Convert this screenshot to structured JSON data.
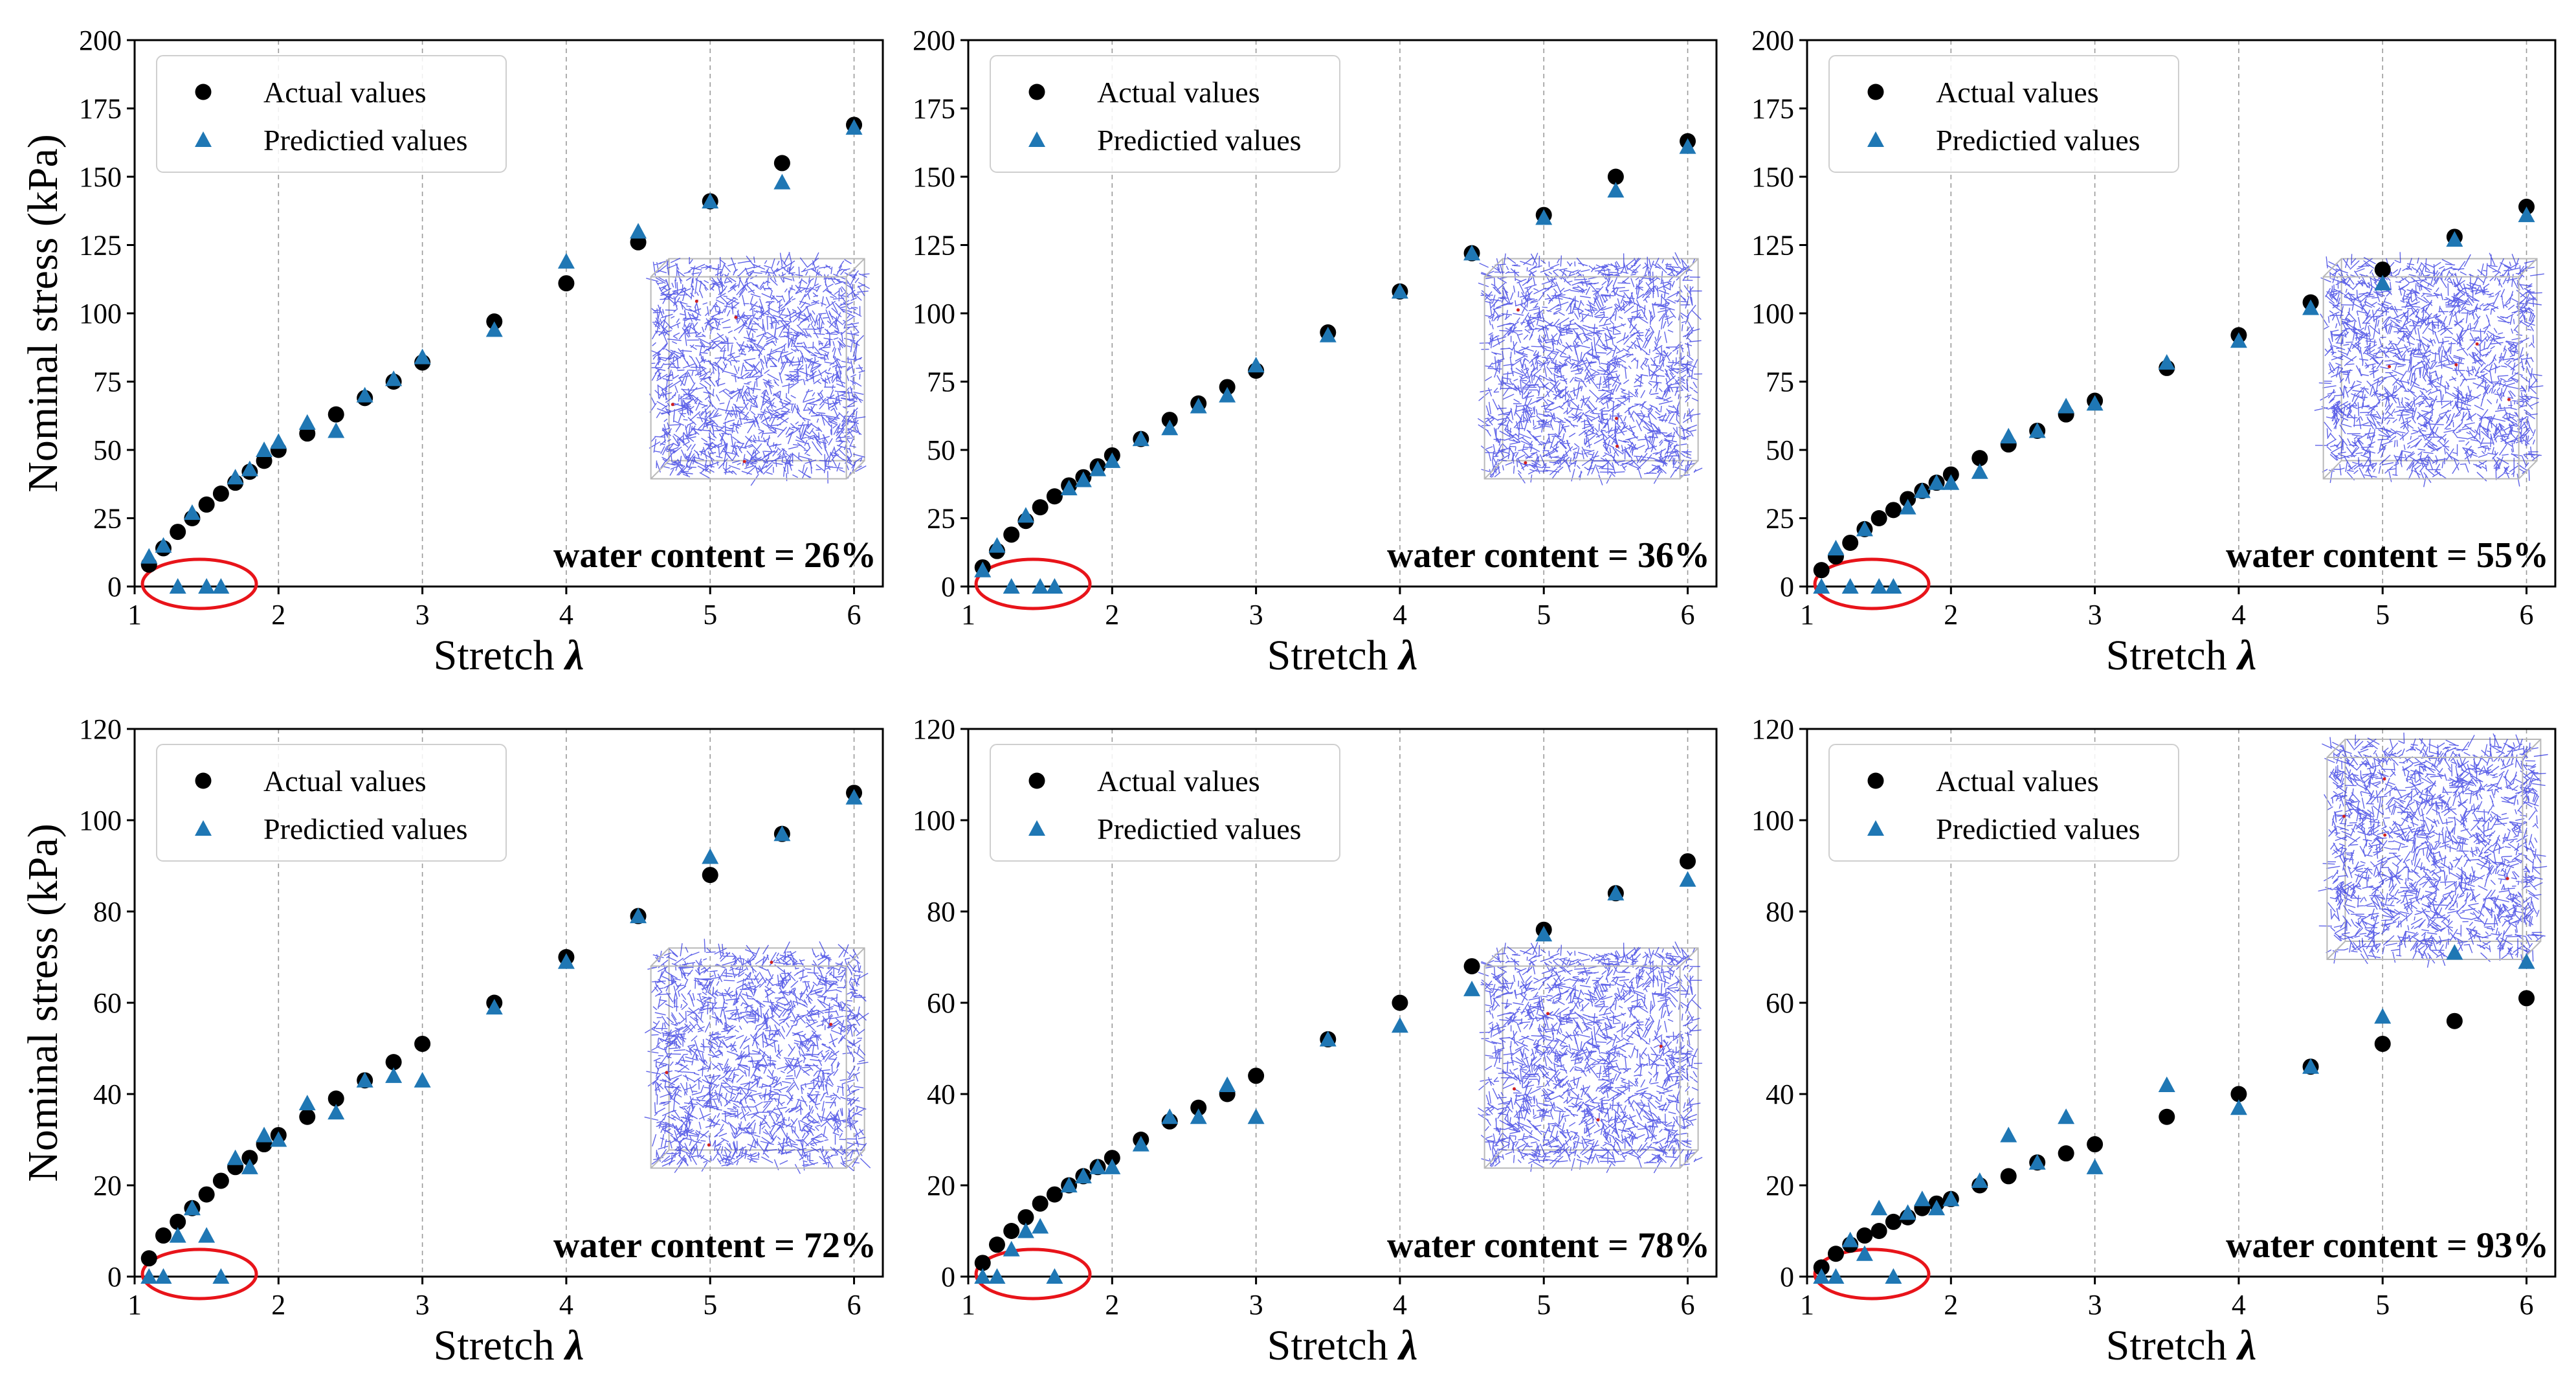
{
  "figure": {
    "colors": {
      "actual": "#000000",
      "predicted": "#1f77b4",
      "highlight": "#e8141a",
      "network": "#2a2fe0"
    },
    "legend": {
      "actual": "Actual values",
      "predicted": "Predictied values"
    }
  },
  "chart_data": [
    {
      "type": "scatter",
      "panel": "a",
      "annotation": "water content = 26%",
      "xlabel": "Stretch",
      "xlabel_symbol": "λ",
      "ylabel": "Nominal stress (kPa)",
      "xlim": [
        1,
        6.2
      ],
      "ylim": [
        0,
        200
      ],
      "xticks": [
        1,
        2,
        3,
        4,
        5,
        6
      ],
      "yticks": [
        0,
        25,
        50,
        75,
        100,
        125,
        150,
        175,
        200
      ],
      "legend_position": "top-left",
      "inset_position": "right-middle",
      "series": [
        {
          "name": "Actual values",
          "x": [
            1.1,
            1.2,
            1.3,
            1.4,
            1.5,
            1.6,
            1.7,
            1.8,
            1.9,
            2.0,
            2.2,
            2.4,
            2.6,
            2.8,
            3.0,
            3.5,
            4.0,
            4.5,
            5.0,
            5.5,
            6.0
          ],
          "y": [
            8,
            14,
            20,
            25,
            30,
            34,
            38,
            42,
            46,
            50,
            56,
            63,
            69,
            75,
            82,
            97,
            111,
            126,
            141,
            155,
            169
          ]
        },
        {
          "name": "Predictied values",
          "x": [
            1.1,
            1.2,
            1.3,
            1.4,
            1.5,
            1.6,
            1.7,
            1.8,
            1.9,
            2.0,
            2.2,
            2.4,
            2.6,
            2.8,
            3.0,
            3.5,
            4.0,
            4.5,
            5.0,
            5.5,
            6.0
          ],
          "y": [
            11,
            15,
            0,
            27,
            0,
            0,
            40,
            43,
            50,
            53,
            60,
            57,
            70,
            76,
            84,
            94,
            119,
            130,
            141,
            148,
            168
          ]
        }
      ]
    },
    {
      "type": "scatter",
      "panel": "b",
      "annotation": "water content = 36%",
      "xlabel": "Stretch",
      "xlabel_symbol": "λ",
      "ylabel": "",
      "xlim": [
        1,
        6.2
      ],
      "ylim": [
        0,
        200
      ],
      "xticks": [
        1,
        2,
        3,
        4,
        5,
        6
      ],
      "yticks": [
        0,
        25,
        50,
        75,
        100,
        125,
        150,
        175,
        200
      ],
      "legend_position": "top-left",
      "inset_position": "right-middle",
      "series": [
        {
          "name": "Actual values",
          "x": [
            1.1,
            1.2,
            1.3,
            1.4,
            1.5,
            1.6,
            1.7,
            1.8,
            1.9,
            2.0,
            2.2,
            2.4,
            2.6,
            2.8,
            3.0,
            3.5,
            4.0,
            4.5,
            5.0,
            5.5,
            6.0
          ],
          "y": [
            7,
            13,
            19,
            24,
            29,
            33,
            37,
            40,
            44,
            48,
            54,
            61,
            67,
            73,
            79,
            93,
            108,
            122,
            136,
            150,
            163
          ]
        },
        {
          "name": "Predictied values",
          "x": [
            1.1,
            1.2,
            1.3,
            1.4,
            1.5,
            1.6,
            1.7,
            1.8,
            1.9,
            2.0,
            2.2,
            2.4,
            2.6,
            2.8,
            3.0,
            3.5,
            4.0,
            4.5,
            5.0,
            5.5,
            6.0
          ],
          "y": [
            6,
            15,
            0,
            26,
            0,
            0,
            36,
            39,
            43,
            46,
            54,
            58,
            66,
            70,
            81,
            92,
            108,
            122,
            135,
            145,
            161
          ]
        }
      ]
    },
    {
      "type": "scatter",
      "panel": "c",
      "annotation": "water content = 55%",
      "xlabel": "Stretch",
      "xlabel_symbol": "λ",
      "ylabel": "",
      "xlim": [
        1,
        6.2
      ],
      "ylim": [
        0,
        200
      ],
      "xticks": [
        1,
        2,
        3,
        4,
        5,
        6
      ],
      "yticks": [
        0,
        25,
        50,
        75,
        100,
        125,
        150,
        175,
        200
      ],
      "legend_position": "top-left",
      "inset_position": "right-middle",
      "series": [
        {
          "name": "Actual values",
          "x": [
            1.1,
            1.2,
            1.3,
            1.4,
            1.5,
            1.6,
            1.7,
            1.8,
            1.9,
            2.0,
            2.2,
            2.4,
            2.6,
            2.8,
            3.0,
            3.5,
            4.0,
            4.5,
            5.0,
            5.5,
            6.0
          ],
          "y": [
            6,
            11,
            16,
            21,
            25,
            28,
            32,
            35,
            38,
            41,
            47,
            52,
            57,
            63,
            68,
            80,
            92,
            104,
            116,
            128,
            139
          ]
        },
        {
          "name": "Predictied values",
          "x": [
            1.1,
            1.2,
            1.3,
            1.4,
            1.5,
            1.6,
            1.7,
            1.8,
            1.9,
            2.0,
            2.2,
            2.4,
            2.6,
            2.8,
            3.0,
            3.5,
            4.0,
            4.5,
            5.0,
            5.5,
            6.0
          ],
          "y": [
            0,
            14,
            0,
            21,
            0,
            0,
            29,
            35,
            38,
            38,
            42,
            55,
            57,
            66,
            67,
            82,
            90,
            102,
            111,
            127,
            136
          ]
        }
      ]
    },
    {
      "type": "scatter",
      "panel": "d",
      "annotation": "water content = 72%",
      "xlabel": "Stretch",
      "xlabel_symbol": "λ",
      "ylabel": "Nominal stress (kPa)",
      "xlim": [
        1,
        6.2
      ],
      "ylim": [
        0,
        120
      ],
      "xticks": [
        1,
        2,
        3,
        4,
        5,
        6
      ],
      "yticks": [
        0,
        20,
        40,
        60,
        80,
        100,
        120
      ],
      "legend_position": "top-left",
      "inset_position": "right-middle",
      "series": [
        {
          "name": "Actual values",
          "x": [
            1.1,
            1.2,
            1.3,
            1.4,
            1.5,
            1.6,
            1.7,
            1.8,
            1.9,
            2.0,
            2.2,
            2.4,
            2.6,
            2.8,
            3.0,
            3.5,
            4.0,
            4.5,
            5.0,
            5.5,
            6.0
          ],
          "y": [
            4,
            9,
            12,
            15,
            18,
            21,
            24,
            26,
            29,
            31,
            35,
            39,
            43,
            47,
            51,
            60,
            70,
            79,
            88,
            97,
            106
          ]
        },
        {
          "name": "Predictied values",
          "x": [
            1.1,
            1.2,
            1.3,
            1.4,
            1.5,
            1.6,
            1.7,
            1.8,
            1.9,
            2.0,
            2.2,
            2.4,
            2.6,
            2.8,
            3.0,
            3.5,
            4.0,
            4.5,
            5.0,
            5.5,
            6.0
          ],
          "y": [
            0,
            0,
            9,
            15,
            9,
            0,
            26,
            24,
            31,
            30,
            38,
            36,
            43,
            44,
            43,
            59,
            69,
            79,
            92,
            97,
            105
          ]
        }
      ]
    },
    {
      "type": "scatter",
      "panel": "e",
      "annotation": "water content = 78%",
      "xlabel": "Stretch",
      "xlabel_symbol": "λ",
      "ylabel": "",
      "xlim": [
        1,
        6.2
      ],
      "ylim": [
        0,
        120
      ],
      "xticks": [
        1,
        2,
        3,
        4,
        5,
        6
      ],
      "yticks": [
        0,
        20,
        40,
        60,
        80,
        100,
        120
      ],
      "legend_position": "top-left",
      "inset_position": "right-middle",
      "series": [
        {
          "name": "Actual values",
          "x": [
            1.1,
            1.2,
            1.3,
            1.4,
            1.5,
            1.6,
            1.7,
            1.8,
            1.9,
            2.0,
            2.2,
            2.4,
            2.6,
            2.8,
            3.0,
            3.5,
            4.0,
            4.5,
            5.0,
            5.5,
            6.0
          ],
          "y": [
            3,
            7,
            10,
            13,
            16,
            18,
            20,
            22,
            24,
            26,
            30,
            34,
            37,
            40,
            44,
            52,
            60,
            68,
            76,
            84,
            91
          ]
        },
        {
          "name": "Predictied values",
          "x": [
            1.1,
            1.2,
            1.3,
            1.4,
            1.5,
            1.6,
            1.7,
            1.8,
            1.9,
            2.0,
            2.2,
            2.4,
            2.6,
            2.8,
            3.0,
            3.5,
            4.0,
            4.5,
            5.0,
            5.5,
            6.0
          ],
          "y": [
            0,
            0,
            6,
            10,
            11,
            0,
            20,
            22,
            24,
            24,
            29,
            35,
            35,
            42,
            35,
            52,
            55,
            63,
            75,
            84,
            87
          ]
        }
      ]
    },
    {
      "type": "scatter",
      "panel": "f",
      "annotation": "water content = 93%",
      "xlabel": "Stretch",
      "xlabel_symbol": "λ",
      "ylabel": "",
      "xlim": [
        1,
        6.2
      ],
      "ylim": [
        0,
        120
      ],
      "xticks": [
        1,
        2,
        3,
        4,
        5,
        6
      ],
      "yticks": [
        0,
        20,
        40,
        60,
        80,
        100,
        120
      ],
      "legend_position": "top-left",
      "inset_position": "top-right",
      "series": [
        {
          "name": "Actual values",
          "x": [
            1.1,
            1.2,
            1.3,
            1.4,
            1.5,
            1.6,
            1.7,
            1.8,
            1.9,
            2.0,
            2.2,
            2.4,
            2.6,
            2.8,
            3.0,
            3.5,
            4.0,
            4.5,
            5.0,
            5.5,
            6.0
          ],
          "y": [
            2,
            5,
            7,
            9,
            10,
            12,
            13,
            15,
            16,
            17,
            20,
            22,
            25,
            27,
            29,
            35,
            40,
            46,
            51,
            56,
            61
          ]
        },
        {
          "name": "Predictied values",
          "x": [
            1.1,
            1.2,
            1.3,
            1.4,
            1.5,
            1.6,
            1.7,
            1.8,
            1.9,
            2.0,
            2.2,
            2.4,
            2.6,
            2.8,
            3.0,
            3.5,
            4.0,
            4.5,
            5.0,
            5.5,
            6.0
          ],
          "y": [
            0,
            0,
            8,
            5,
            15,
            0,
            14,
            17,
            15,
            17,
            21,
            31,
            25,
            35,
            24,
            42,
            37,
            46,
            57,
            71,
            69
          ]
        }
      ]
    }
  ]
}
